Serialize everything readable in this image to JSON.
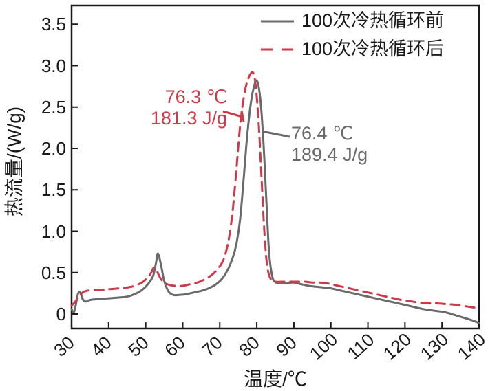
{
  "figure": {
    "background": "#ffffff",
    "frame_color": "#1a1a1a",
    "text_color": "#1a1a1a"
  },
  "legend": {
    "items": [
      {
        "label": "100次冷热循环前",
        "color": "#6a6a6a",
        "style": "solid"
      },
      {
        "label": "100次冷热循环后",
        "color": "#cf3a4a",
        "style": "dashed"
      }
    ]
  },
  "annotations": {
    "after": {
      "temp": "76.3 ℃",
      "enthalpy": "181.3 J/g",
      "color": "#cf3a4a"
    },
    "before": {
      "temp": "76.4 ℃",
      "enthalpy": "189.4 J/g",
      "color": "#6a6a6a"
    }
  },
  "chart_data": {
    "type": "line",
    "title": "",
    "xlabel": "温度/℃",
    "ylabel": "热流量/(W/g)",
    "xlim": [
      30,
      140
    ],
    "ylim": [
      -0.17,
      3.73
    ],
    "grid": false,
    "legend_position": "top-right",
    "x_ticks": [
      30,
      40,
      50,
      60,
      70,
      80,
      90,
      100,
      110,
      120,
      130,
      140
    ],
    "x_tick_labels": [
      "30",
      "40",
      "50",
      "60",
      "70",
      "80",
      "90",
      "100",
      "110",
      "120",
      "130",
      "140"
    ],
    "y_ticks": [
      0,
      0.5,
      1.0,
      1.5,
      2.0,
      2.5,
      3.0,
      3.5
    ],
    "y_tick_labels": [
      "0",
      "0.5",
      "1.0",
      "1.5",
      "2.0",
      "2.5",
      "3.0",
      "3.5"
    ],
    "series": [
      {
        "name": "100次冷热循环前",
        "color": "#6a6a6a",
        "style": "solid",
        "peak_temp_c": 76.4,
        "enthalpy_j_per_g": 189.4,
        "points": [
          [
            30,
            0.06
          ],
          [
            30.6,
            0.02
          ],
          [
            31.1,
            0.1
          ],
          [
            31.7,
            0.24
          ],
          [
            32.3,
            0.26
          ],
          [
            33,
            0.18
          ],
          [
            33.8,
            0.15
          ],
          [
            35,
            0.17
          ],
          [
            37,
            0.18
          ],
          [
            40,
            0.19
          ],
          [
            43,
            0.2
          ],
          [
            45,
            0.21
          ],
          [
            47,
            0.24
          ],
          [
            49,
            0.29
          ],
          [
            50.6,
            0.36
          ],
          [
            52,
            0.46
          ],
          [
            52.8,
            0.62
          ],
          [
            53.3,
            0.73
          ],
          [
            54.1,
            0.6
          ],
          [
            55,
            0.4
          ],
          [
            56.2,
            0.27
          ],
          [
            57.5,
            0.23
          ],
          [
            59,
            0.23
          ],
          [
            61,
            0.24
          ],
          [
            63,
            0.26
          ],
          [
            65,
            0.28
          ],
          [
            67,
            0.31
          ],
          [
            69,
            0.36
          ],
          [
            70.5,
            0.42
          ],
          [
            72,
            0.52
          ],
          [
            73.5,
            0.68
          ],
          [
            74.5,
            0.85
          ],
          [
            75.5,
            1.15
          ],
          [
            76.4,
            1.6
          ],
          [
            77.2,
            2.05
          ],
          [
            78.1,
            2.45
          ],
          [
            79,
            2.7
          ],
          [
            80,
            2.82
          ],
          [
            80.9,
            2.62
          ],
          [
            81.7,
            2.15
          ],
          [
            82.5,
            1.45
          ],
          [
            83.3,
            0.75
          ],
          [
            84.2,
            0.45
          ],
          [
            85.2,
            0.38
          ],
          [
            86.5,
            0.37
          ],
          [
            88,
            0.37
          ],
          [
            90,
            0.38
          ],
          [
            92,
            0.36
          ],
          [
            94,
            0.34
          ],
          [
            96,
            0.33
          ],
          [
            98,
            0.32
          ],
          [
            100,
            0.31
          ],
          [
            102,
            0.29
          ],
          [
            105,
            0.26
          ],
          [
            108,
            0.23
          ],
          [
            110,
            0.21
          ],
          [
            113,
            0.18
          ],
          [
            116,
            0.15
          ],
          [
            119,
            0.12
          ],
          [
            122,
            0.09
          ],
          [
            125,
            0.06
          ],
          [
            128,
            0.04
          ],
          [
            131,
            0.02
          ],
          [
            134,
            -0.02
          ],
          [
            137,
            -0.06
          ],
          [
            139,
            -0.09
          ],
          [
            140,
            -0.11
          ]
        ]
      },
      {
        "name": "100次冷热循环后",
        "color": "#cf3a4a",
        "style": "dashed",
        "peak_temp_c": 76.3,
        "enthalpy_j_per_g": 181.3,
        "points": [
          [
            30,
            0.1
          ],
          [
            31,
            0.15
          ],
          [
            32,
            0.21
          ],
          [
            33,
            0.26
          ],
          [
            34,
            0.28
          ],
          [
            36,
            0.29
          ],
          [
            38,
            0.29
          ],
          [
            40,
            0.3
          ],
          [
            43,
            0.31
          ],
          [
            45,
            0.32
          ],
          [
            47,
            0.34
          ],
          [
            49,
            0.38
          ],
          [
            50.5,
            0.44
          ],
          [
            51.5,
            0.5
          ],
          [
            52.2,
            0.56
          ],
          [
            53,
            0.52
          ],
          [
            54,
            0.43
          ],
          [
            55,
            0.38
          ],
          [
            56.5,
            0.35
          ],
          [
            58,
            0.34
          ],
          [
            60,
            0.34
          ],
          [
            62,
            0.36
          ],
          [
            64,
            0.38
          ],
          [
            66,
            0.42
          ],
          [
            67.5,
            0.46
          ],
          [
            69,
            0.52
          ],
          [
            70.5,
            0.61
          ],
          [
            71.5,
            0.72
          ],
          [
            72.5,
            0.92
          ],
          [
            73.5,
            1.25
          ],
          [
            74.5,
            1.75
          ],
          [
            75.5,
            2.28
          ],
          [
            76.5,
            2.62
          ],
          [
            77.5,
            2.82
          ],
          [
            78.8,
            2.92
          ],
          [
            79.6,
            2.8
          ],
          [
            80.4,
            2.38
          ],
          [
            81.2,
            1.72
          ],
          [
            82,
            1.02
          ],
          [
            82.8,
            0.58
          ],
          [
            83.8,
            0.42
          ],
          [
            85,
            0.39
          ],
          [
            87,
            0.39
          ],
          [
            89,
            0.39
          ],
          [
            91,
            0.39
          ],
          [
            93,
            0.39
          ],
          [
            95,
            0.38
          ],
          [
            97,
            0.38
          ],
          [
            99,
            0.37
          ],
          [
            101,
            0.35
          ],
          [
            103,
            0.33
          ],
          [
            105,
            0.31
          ],
          [
            107,
            0.29
          ],
          [
            110,
            0.26
          ],
          [
            113,
            0.23
          ],
          [
            116,
            0.2
          ],
          [
            119,
            0.17
          ],
          [
            122,
            0.15
          ],
          [
            125,
            0.13
          ],
          [
            128,
            0.13
          ],
          [
            131,
            0.12
          ],
          [
            134,
            0.11
          ],
          [
            137,
            0.09
          ],
          [
            140,
            0.07
          ]
        ]
      }
    ]
  }
}
